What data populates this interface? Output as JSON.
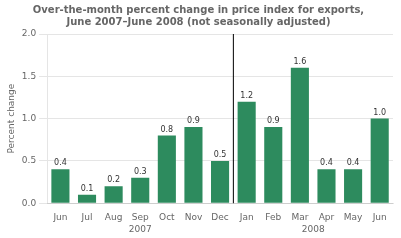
{
  "chart_data": {
    "type": "bar",
    "title": "Over-the-month percent change in price index for exports,\nJune 2007–June 2008 (not seasonally adjusted)",
    "y_label": "Percent change",
    "categories": [
      "Jun",
      "Jul",
      "Aug",
      "Sep",
      "Oct",
      "Nov",
      "Dec",
      "Jan",
      "Feb",
      "Mar",
      "Apr",
      "May",
      "Jun"
    ],
    "values": [
      0.4,
      0.1,
      0.2,
      0.3,
      0.8,
      0.9,
      0.5,
      1.2,
      0.9,
      1.6,
      0.4,
      0.4,
      1.0
    ],
    "value_labels": [
      "0.4",
      "0.1",
      "0.2",
      "0.3",
      "0.8",
      "0.9",
      "0.5",
      "1.2",
      "0.9",
      "1.6",
      "0.4",
      "0.4",
      "1.0"
    ],
    "data_labels": true,
    "color": "#2d8b5e",
    "ylim": [
      0,
      2.0
    ],
    "yticks": [
      {
        "value": 0.0,
        "label": "0.0"
      },
      {
        "value": 0.5,
        "label": "0.5"
      },
      {
        "value": 1.0,
        "label": "1.0"
      },
      {
        "value": 1.5,
        "label": "1.5"
      },
      {
        "value": 2.0,
        "label": "2.0"
      }
    ],
    "grid": true,
    "annotations": [
      {
        "type": "vline",
        "x": 6.5
      },
      {
        "type": "text",
        "text": "2007",
        "x": 3.0
      },
      {
        "type": "text",
        "text": "2008",
        "x": 9.5
      }
    ]
  }
}
